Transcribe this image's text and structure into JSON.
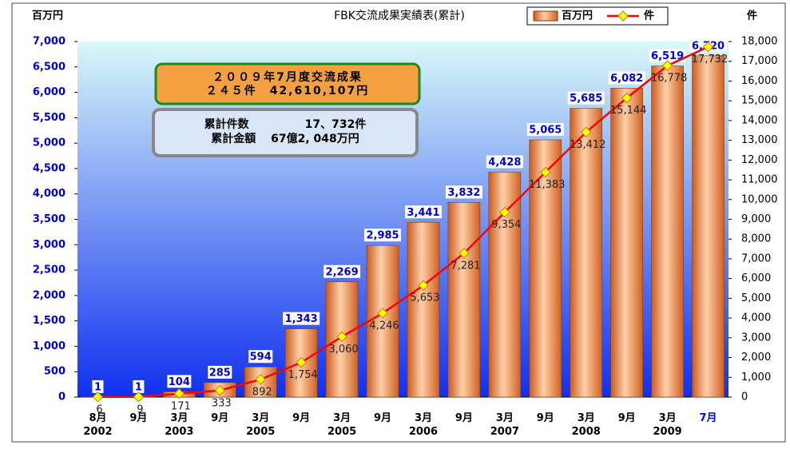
{
  "chart_data": {
    "type": "bar",
    "title": "FBK交流成果実績表(累計)",
    "y_label": "百万円",
    "y2_label": "件",
    "categories": [
      "8月\n2002",
      "9月",
      "3月\n2003",
      "9月",
      "3月\n2005",
      "9月",
      "3月\n2005",
      "9月",
      "3月\n2006",
      "9月",
      "3月\n2007",
      "9月",
      "3月\n2008",
      "9月",
      "3月\n2009",
      "7月"
    ],
    "series": [
      {
        "name": "百万円",
        "color": "#f08a3c",
        "values": [
          1,
          1,
          104,
          285,
          594,
          1343,
          2269,
          2985,
          3441,
          3832,
          4428,
          5065,
          5685,
          6082,
          6519,
          6720
        ],
        "value_labels": [
          "1",
          "1",
          "104",
          "285",
          "594",
          "1,343",
          "2,269",
          "2,985",
          "3,441",
          "3,832",
          "4,428",
          "5,065",
          "5,685",
          "6,082",
          "6,519",
          "6,720"
        ]
      },
      {
        "name": "件",
        "type": "line",
        "axis": "y2",
        "color": "#ff0000",
        "values": [
          6,
          9,
          171,
          333,
          892,
          1754,
          3060,
          4246,
          5653,
          7281,
          9354,
          11383,
          13412,
          15144,
          16778,
          17732
        ],
        "value_labels": [
          "6",
          "9",
          "171",
          "333",
          "892",
          "1,754",
          "3,060",
          "4,246",
          "5,653",
          "7,281",
          "9,354",
          "11,383",
          "13,412",
          "15,144",
          "16,778",
          "17,732"
        ]
      }
    ],
    "ylim": [
      0,
      7000
    ],
    "yticks": [
      0,
      500,
      {
        "value": 1000,
        "label": "1,000"
      },
      {
        "value": 1500,
        "label": "1,500"
      },
      {
        "value": 2000,
        "label": "2,000"
      },
      {
        "value": 2500,
        "label": "2,500"
      },
      {
        "value": 3000,
        "label": "3,000"
      },
      {
        "value": 3500,
        "label": "3,500"
      },
      {
        "value": 4000,
        "label": "4,000"
      },
      {
        "value": 4500,
        "label": "4,500"
      },
      {
        "value": 5000,
        "label": "5,000"
      },
      {
        "value": 5500,
        "label": "5,500"
      },
      {
        "value": 6000,
        "label": "6,000"
      },
      {
        "value": 6500,
        "label": "6,500"
      },
      {
        "value": 7000,
        "label": "7,000"
      }
    ],
    "y2lim": [
      0,
      18000
    ],
    "y2ticks": [
      0,
      {
        "value": 1000,
        "label": "1,000"
      },
      {
        "value": 2000,
        "label": "2,000"
      },
      {
        "value": 3000,
        "label": "3,000"
      },
      {
        "value": 4000,
        "label": "4,000"
      },
      {
        "value": 5000,
        "label": "5,000"
      },
      {
        "value": 6000,
        "label": "6,000"
      },
      {
        "value": 7000,
        "label": "7,000"
      },
      {
        "value": 8000,
        "label": "8,000"
      },
      {
        "value": 9000,
        "label": "9,000"
      },
      {
        "value": 10000,
        "label": "10,000"
      },
      {
        "value": 11000,
        "label": "11,000"
      },
      {
        "value": 12000,
        "label": "12,000"
      },
      {
        "value": 13000,
        "label": "13,000"
      },
      {
        "value": 14000,
        "label": "14,000"
      },
      {
        "value": 15000,
        "label": "15,000"
      },
      {
        "value": 16000,
        "label": "16,000"
      },
      {
        "value": 17000,
        "label": "17,000"
      },
      {
        "value": 18000,
        "label": "18,000"
      }
    ],
    "annotations": [
      [
        "２００９年7月度交流成果",
        "２４５件　42,610,107円"
      ],
      [
        "累計件数　　　　　17、732件",
        "累計金額　 67億2, 048万円"
      ]
    ]
  }
}
